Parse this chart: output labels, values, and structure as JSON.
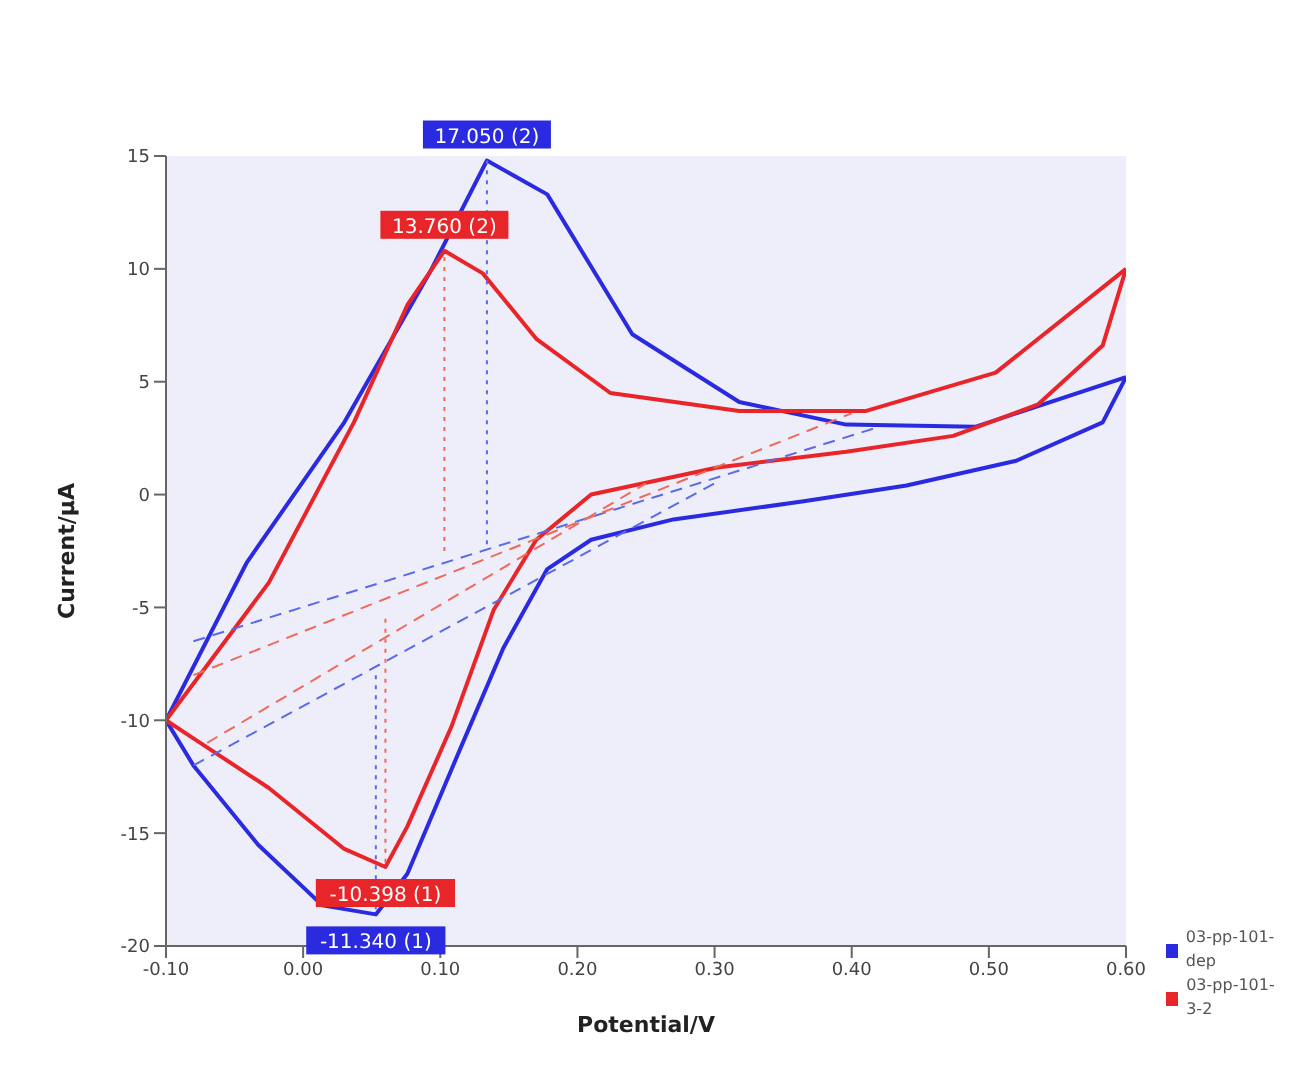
{
  "chart_data": {
    "type": "line",
    "xlabel": "Potential/V",
    "ylabel": "Current/µA",
    "xlim": [
      -0.1,
      0.6
    ],
    "xticks": [
      {
        "value": -0.1,
        "label": "-0.10"
      },
      {
        "value": 0,
        "label": "0.00"
      },
      {
        "value": 0.1,
        "label": "0.10"
      },
      {
        "value": 0.2,
        "label": "0.20"
      },
      {
        "value": 0.3,
        "label": "0.30"
      },
      {
        "value": 0.4,
        "label": "0.40"
      },
      {
        "value": 0.5,
        "label": "0.50"
      },
      {
        "value": 0.6,
        "label": "0.60"
      }
    ],
    "ylim": [
      -20,
      15
    ],
    "yticks": [
      -20,
      -15,
      -10,
      -5,
      0,
      5,
      10,
      15
    ],
    "grid": false,
    "legend": "bottom right",
    "series": [
      {
        "name": "03-pp-101-dep",
        "color": "#2a2ae0",
        "line_style": "solid",
        "x": [
          -0.1,
          -0.041,
          0.03,
          0.092,
          0.134,
          0.178,
          0.24,
          0.318,
          0.396,
          0.49,
          0.6
        ],
        "values": [
          -10,
          -3,
          3.2,
          9.8,
          14.8,
          13.3,
          7.1,
          4.1,
          3.1,
          3,
          5.2
        ]
      },
      {
        "name": "03-pp-101-3-2",
        "color": "#e8262a",
        "line_style": "solid",
        "x": [
          -0.1,
          -0.025,
          0.037,
          0.076,
          0.103,
          0.131,
          0.17,
          0.224,
          0.318,
          0.41,
          0.505,
          0.6
        ],
        "values": [
          -10,
          -3.9,
          3.2,
          8.4,
          10.8,
          9.8,
          6.9,
          4.5,
          3.7,
          3.7,
          5.4,
          10
        ]
      },
      {
        "color": "#2a2ae0",
        "line_style": "solid",
        "x": [
          0.6,
          0.583,
          0.52,
          0.44,
          0.365,
          0.27,
          0.21,
          0.178,
          0.146,
          0.115,
          0.076,
          0.053,
          0.014,
          -0.033,
          -0.08,
          -0.1
        ],
        "values": [
          5.2,
          3.2,
          1.5,
          0.4,
          -0.3,
          -1.1,
          -2,
          -3.3,
          -6.8,
          -11.2,
          -16.8,
          -18.6,
          -18.2,
          -15.5,
          -12,
          -10
        ]
      },
      {
        "color": "#e8262a",
        "line_style": "solid",
        "x": [
          0.6,
          0.583,
          0.536,
          0.474,
          0.396,
          0.302,
          0.21,
          0.17,
          0.139,
          0.108,
          0.076,
          0.06,
          0.03,
          -0.025,
          -0.08,
          -0.1
        ],
        "values": [
          10,
          6.6,
          4,
          2.6,
          1.9,
          1.2,
          0,
          -2,
          -5.1,
          -10.3,
          -14.7,
          -16.5,
          -15.7,
          -13,
          -10.8,
          -10
        ]
      },
      {
        "color": "#5a6ae8",
        "line_style": "dashed",
        "x": [
          -0.08,
          0.42
        ],
        "values": [
          -6.5,
          3
        ]
      },
      {
        "color": "#5a6ae8",
        "line_style": "dashed",
        "x": [
          -0.08,
          0.3
        ],
        "values": [
          -12,
          0.5
        ]
      },
      {
        "color": "#f06a5a",
        "line_style": "dashed",
        "x": [
          -0.08,
          0.4
        ],
        "values": [
          -8,
          3.6
        ]
      },
      {
        "color": "#f06a5a",
        "line_style": "dashed",
        "x": [
          -0.07,
          0.25
        ],
        "values": [
          -11,
          0.5
        ]
      },
      {
        "color": "#5a6ae8",
        "line_style": "dotted",
        "x": [
          0.134,
          0.134
        ],
        "values": [
          -2.2,
          14.8
        ]
      },
      {
        "color": "#f06a5a",
        "line_style": "dotted",
        "x": [
          0.103,
          0.103
        ],
        "values": [
          -2.5,
          10.8
        ]
      },
      {
        "color": "#5a6ae8",
        "line_style": "dotted",
        "x": [
          0.053,
          0.053
        ],
        "values": [
          -8,
          -18.6
        ]
      },
      {
        "color": "#f06a5a",
        "line_style": "dotted",
        "x": [
          0.06,
          0.06
        ],
        "values": [
          -5.5,
          -16.5
        ]
      }
    ],
    "annotations": [
      {
        "text": "17.050 (2)",
        "x": 0.134,
        "y": 14.8
      },
      {
        "text": "13.760 (2)",
        "x": 0.103,
        "y": 10.8
      },
      {
        "text": "-11.340 (1)",
        "x": 0.053,
        "y": -18.6
      },
      {
        "text": "-10.398 (1)",
        "x": 0.06,
        "y": -16.5
      }
    ]
  }
}
